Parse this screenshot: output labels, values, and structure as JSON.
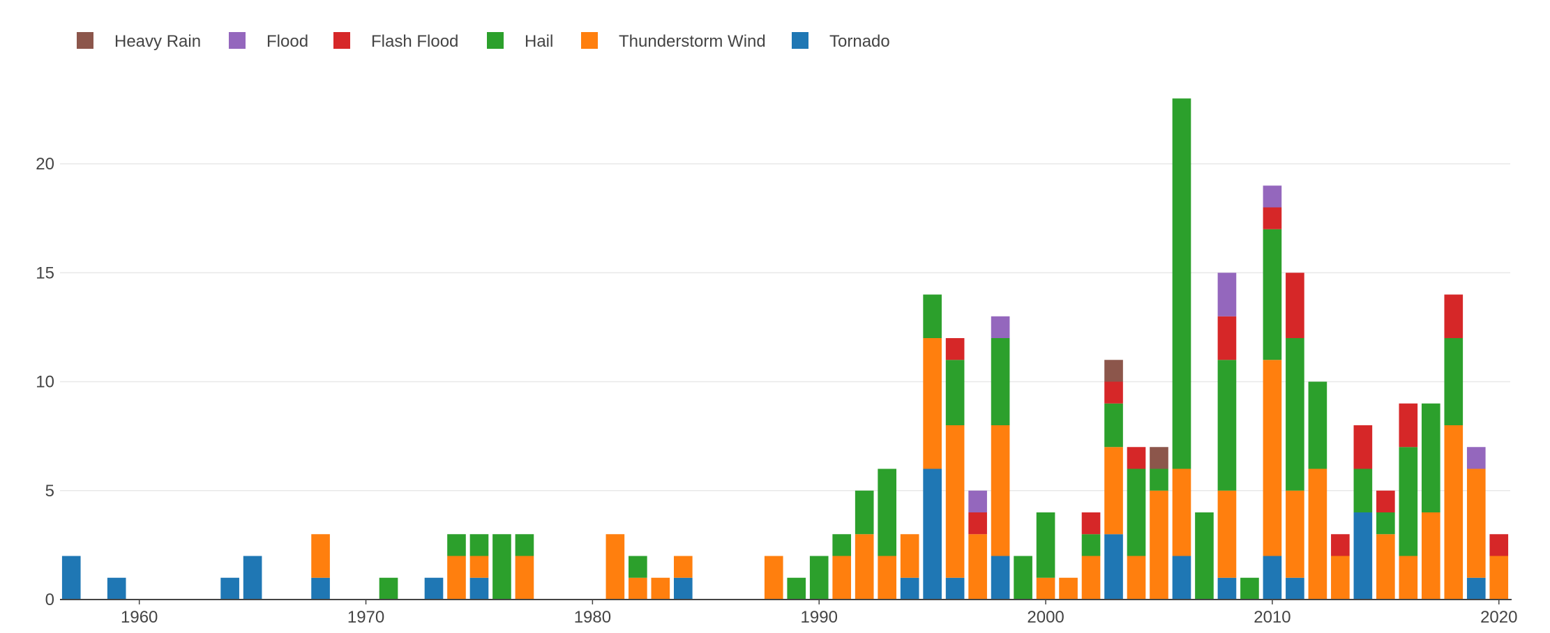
{
  "chart_data": {
    "type": "bar",
    "stacked": true,
    "title": "",
    "xlabel": "",
    "ylabel": "",
    "xlim": [
      1956.5,
      2020.5
    ],
    "ylim": [
      0,
      24
    ],
    "xticks": [
      1960,
      1970,
      1980,
      1990,
      2000,
      2010,
      2020
    ],
    "yticks": [
      0,
      5,
      10,
      15,
      20
    ],
    "grid": "horizontal",
    "legend_position": "top-left",
    "legend": [
      "Heavy Rain",
      "Flood",
      "Flash Flood",
      "Hail",
      "Thunderstorm Wind",
      "Tornado"
    ],
    "series_colors": {
      "Tornado": "#1f77b4",
      "Thunderstorm Wind": "#ff7f0e",
      "Hail": "#2ca02c",
      "Flash Flood": "#d62728",
      "Flood": "#9467bd",
      "Heavy Rain": "#8c564b"
    },
    "stack_order": [
      "Tornado",
      "Thunderstorm Wind",
      "Hail",
      "Flash Flood",
      "Flood",
      "Heavy Rain"
    ],
    "data": [
      {
        "year": 1957,
        "Tornado": 2
      },
      {
        "year": 1959,
        "Tornado": 1
      },
      {
        "year": 1964,
        "Tornado": 1
      },
      {
        "year": 1965,
        "Tornado": 2
      },
      {
        "year": 1968,
        "Tornado": 1,
        "Thunderstorm Wind": 2
      },
      {
        "year": 1971,
        "Hail": 1
      },
      {
        "year": 1973,
        "Tornado": 1
      },
      {
        "year": 1974,
        "Thunderstorm Wind": 2,
        "Hail": 1
      },
      {
        "year": 1975,
        "Tornado": 1,
        "Thunderstorm Wind": 1,
        "Hail": 1
      },
      {
        "year": 1976,
        "Hail": 3
      },
      {
        "year": 1977,
        "Thunderstorm Wind": 2,
        "Hail": 1
      },
      {
        "year": 1981,
        "Thunderstorm Wind": 3
      },
      {
        "year": 1982,
        "Thunderstorm Wind": 1,
        "Hail": 1
      },
      {
        "year": 1983,
        "Thunderstorm Wind": 1
      },
      {
        "year": 1984,
        "Tornado": 1,
        "Thunderstorm Wind": 1
      },
      {
        "year": 1988,
        "Thunderstorm Wind": 2
      },
      {
        "year": 1989,
        "Hail": 1
      },
      {
        "year": 1990,
        "Hail": 2
      },
      {
        "year": 1991,
        "Thunderstorm Wind": 2,
        "Hail": 1
      },
      {
        "year": 1992,
        "Thunderstorm Wind": 3,
        "Hail": 2
      },
      {
        "year": 1993,
        "Thunderstorm Wind": 2,
        "Hail": 4
      },
      {
        "year": 1994,
        "Tornado": 1,
        "Thunderstorm Wind": 2
      },
      {
        "year": 1995,
        "Tornado": 6,
        "Thunderstorm Wind": 6,
        "Hail": 2
      },
      {
        "year": 1996,
        "Tornado": 1,
        "Thunderstorm Wind": 7,
        "Hail": 3,
        "Flash Flood": 1
      },
      {
        "year": 1997,
        "Thunderstorm Wind": 3,
        "Flash Flood": 1,
        "Flood": 1
      },
      {
        "year": 1998,
        "Tornado": 2,
        "Thunderstorm Wind": 6,
        "Hail": 4,
        "Flood": 1
      },
      {
        "year": 1999,
        "Hail": 2
      },
      {
        "year": 2000,
        "Thunderstorm Wind": 1,
        "Hail": 3
      },
      {
        "year": 2001,
        "Thunderstorm Wind": 1
      },
      {
        "year": 2002,
        "Thunderstorm Wind": 2,
        "Hail": 1,
        "Flash Flood": 1
      },
      {
        "year": 2003,
        "Tornado": 3,
        "Thunderstorm Wind": 4,
        "Hail": 2,
        "Flash Flood": 1,
        "Heavy Rain": 1
      },
      {
        "year": 2004,
        "Thunderstorm Wind": 2,
        "Hail": 4,
        "Flash Flood": 1
      },
      {
        "year": 2005,
        "Thunderstorm Wind": 5,
        "Hail": 1,
        "Heavy Rain": 1
      },
      {
        "year": 2006,
        "Tornado": 2,
        "Thunderstorm Wind": 4,
        "Hail": 17
      },
      {
        "year": 2007,
        "Hail": 4
      },
      {
        "year": 2008,
        "Tornado": 1,
        "Thunderstorm Wind": 4,
        "Hail": 6,
        "Flash Flood": 2,
        "Flood": 2
      },
      {
        "year": 2009,
        "Hail": 1
      },
      {
        "year": 2010,
        "Tornado": 2,
        "Thunderstorm Wind": 9,
        "Hail": 6,
        "Flash Flood": 1,
        "Flood": 1
      },
      {
        "year": 2011,
        "Tornado": 1,
        "Thunderstorm Wind": 4,
        "Hail": 7,
        "Flash Flood": 3
      },
      {
        "year": 2012,
        "Thunderstorm Wind": 6,
        "Hail": 4
      },
      {
        "year": 2013,
        "Thunderstorm Wind": 2,
        "Flash Flood": 1
      },
      {
        "year": 2014,
        "Tornado": 4,
        "Hail": 2,
        "Flash Flood": 2
      },
      {
        "year": 2015,
        "Thunderstorm Wind": 3,
        "Hail": 1,
        "Flash Flood": 1
      },
      {
        "year": 2016,
        "Thunderstorm Wind": 2,
        "Hail": 5,
        "Flash Flood": 2
      },
      {
        "year": 2017,
        "Thunderstorm Wind": 4,
        "Hail": 5
      },
      {
        "year": 2018,
        "Thunderstorm Wind": 8,
        "Hail": 4,
        "Flash Flood": 2
      },
      {
        "year": 2019,
        "Tornado": 1,
        "Thunderstorm Wind": 5,
        "Flood": 1
      },
      {
        "year": 2020,
        "Thunderstorm Wind": 2,
        "Flash Flood": 1
      }
    ]
  }
}
